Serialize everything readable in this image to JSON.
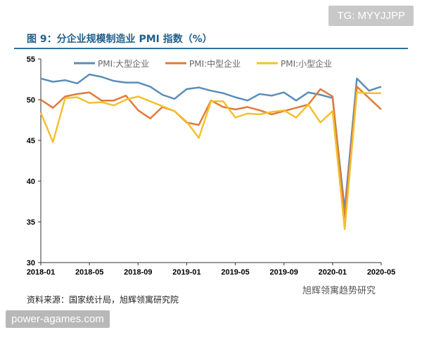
{
  "watermark_top": "TG: MYYJJPP",
  "watermark_bottom": "power-agames.com",
  "source_note": "资料来源：国家统计局，旭辉领寓研究院",
  "wechat_mark": "旭辉领寓趋势研究",
  "chart_data": {
    "type": "line",
    "title": "图 9：分企业规模制造业 PMI 指数（%）",
    "ylim": [
      30,
      55
    ],
    "yticks": [
      30,
      35,
      40,
      45,
      50,
      55
    ],
    "xtick_labels": [
      "2018-01",
      "2018-05",
      "2018-09",
      "2019-01",
      "2019-05",
      "2019-09",
      "2020-01",
      "2020-05"
    ],
    "x": [
      "2018-01",
      "2018-02",
      "2018-03",
      "2018-04",
      "2018-05",
      "2018-06",
      "2018-07",
      "2018-08",
      "2018-09",
      "2018-10",
      "2018-11",
      "2018-12",
      "2019-01",
      "2019-02",
      "2019-03",
      "2019-04",
      "2019-05",
      "2019-06",
      "2019-07",
      "2019-08",
      "2019-09",
      "2019-10",
      "2019-11",
      "2019-12",
      "2020-01",
      "2020-02",
      "2020-03",
      "2020-04",
      "2020-05"
    ],
    "legend": "top",
    "grid": false,
    "series": [
      {
        "name": "PMI:大型企业",
        "color": "#5b8db8",
        "values": [
          52.6,
          52.2,
          52.4,
          52.0,
          53.1,
          52.8,
          52.3,
          52.1,
          52.1,
          51.6,
          50.6,
          50.1,
          51.3,
          51.5,
          51.1,
          50.8,
          50.3,
          49.9,
          50.7,
          50.5,
          50.9,
          49.9,
          50.9,
          50.6,
          50.2,
          36.5,
          52.6,
          51.1,
          51.6
        ]
      },
      {
        "name": "PMI:中型企业",
        "color": "#e07b39",
        "values": [
          50.0,
          49.0,
          50.4,
          50.7,
          50.9,
          49.9,
          49.9,
          50.5,
          48.7,
          47.7,
          49.1,
          48.6,
          47.2,
          46.9,
          49.9,
          49.1,
          48.8,
          49.1,
          48.7,
          48.2,
          48.6,
          49.0,
          49.4,
          51.3,
          50.4,
          35.5,
          51.6,
          50.2,
          48.8
        ]
      },
      {
        "name": "PMI:小型企业",
        "color": "#f2c12e",
        "values": [
          48.4,
          44.8,
          50.2,
          50.3,
          49.6,
          49.7,
          49.3,
          50.0,
          50.4,
          49.8,
          49.2,
          48.6,
          47.3,
          45.3,
          49.8,
          49.8,
          47.8,
          48.3,
          48.2,
          48.5,
          48.7,
          47.8,
          49.4,
          47.2,
          48.6,
          34.1,
          50.9,
          50.8,
          50.8
        ]
      }
    ]
  }
}
